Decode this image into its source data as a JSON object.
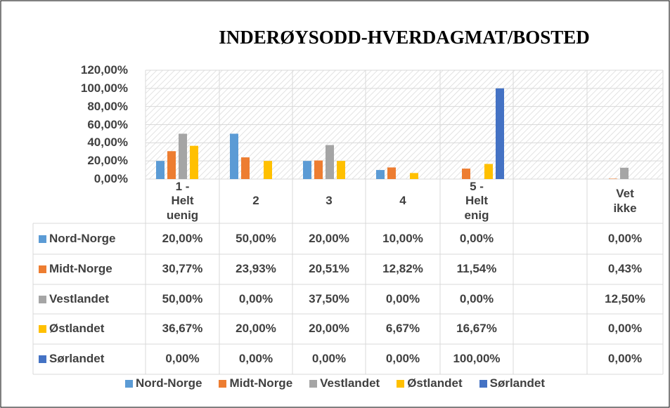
{
  "chart_data": {
    "type": "bar",
    "title": "INDERØYSODD-HVERDAGMAT/BOSTED",
    "categories": [
      "1 - Helt uenig",
      "2",
      "3",
      "4",
      "5 - Helt enig",
      null,
      "Vet ikke"
    ],
    "series": [
      {
        "name": "Nord-Norge",
        "color": "#5b9bd5",
        "values": [
          20,
          50,
          20,
          10,
          0,
          null,
          0
        ],
        "value_labels": [
          "20,00%",
          "50,00%",
          "20,00%",
          "10,00%",
          "0,00%",
          null,
          "0,00%"
        ]
      },
      {
        "name": "Midt-Norge",
        "color": "#ed7d31",
        "values": [
          30.77,
          23.93,
          20.51,
          12.82,
          11.54,
          null,
          0.43
        ],
        "value_labels": [
          "30,77%",
          "23,93%",
          "20,51%",
          "12,82%",
          "11,54%",
          null,
          "0,43%"
        ]
      },
      {
        "name": "Vestlandet",
        "color": "#a5a5a5",
        "values": [
          50,
          0,
          37.5,
          0,
          0,
          null,
          12.5
        ],
        "value_labels": [
          "50,00%",
          "0,00%",
          "37,50%",
          "0,00%",
          "0,00%",
          null,
          "12,50%"
        ]
      },
      {
        "name": "Østlandet",
        "color": "#ffc000",
        "values": [
          36.67,
          20,
          20,
          6.67,
          16.67,
          null,
          0
        ],
        "value_labels": [
          "36,67%",
          "20,00%",
          "20,00%",
          "6,67%",
          "16,67%",
          null,
          "0,00%"
        ]
      },
      {
        "name": "Sørlandet",
        "color": "#4472c4",
        "values": [
          0,
          0,
          0,
          0,
          100,
          null,
          0
        ],
        "value_labels": [
          "0,00%",
          "0,00%",
          "0,00%",
          "0,00%",
          "100,00%",
          null,
          "0,00%"
        ]
      }
    ],
    "ylim": [
      0,
      120
    ],
    "yticks": [
      {
        "value": 0,
        "label": "0,00%"
      },
      {
        "value": 20,
        "label": "20,00%"
      },
      {
        "value": 40,
        "label": "40,00%"
      },
      {
        "value": 60,
        "label": "60,00%"
      },
      {
        "value": 80,
        "label": "80,00%"
      },
      {
        "value": 100,
        "label": "100,00%"
      },
      {
        "value": 120,
        "label": "120,00%"
      }
    ],
    "grid": true,
    "legend": "bottom"
  }
}
